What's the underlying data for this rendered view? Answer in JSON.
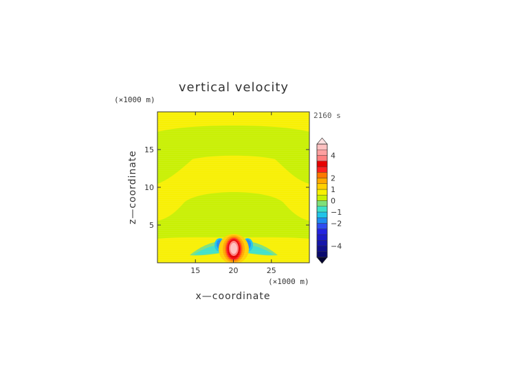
{
  "chart_data": {
    "type": "heatmap",
    "title": "vertical velocity",
    "xlabel": "x—coordinate",
    "ylabel": "z—coordinate",
    "x_unit": "(×1000 m)",
    "y_unit": "(×1000 m)",
    "time_label": "2160 s",
    "xlim": [
      10,
      30
    ],
    "ylim": [
      0,
      20
    ],
    "xticks": [
      15,
      20,
      25
    ],
    "yticks": [
      5,
      10,
      15
    ],
    "xtick_labels": [
      "15",
      "20",
      "25"
    ],
    "ytick_labels": [
      "5",
      "10",
      "15"
    ],
    "colorbar": {
      "levels": [
        -5,
        -4.5,
        -4,
        -3.5,
        -3,
        -2.5,
        -2,
        -1.5,
        -1,
        -0.5,
        0,
        0.5,
        1,
        1.5,
        2,
        2.5,
        3,
        3.5,
        4,
        4.5,
        5
      ],
      "colors": [
        "#0a0a6e",
        "#10108c",
        "#1515aa",
        "#1c1cc8",
        "#2424e0",
        "#2f4cf0",
        "#1f8cf0",
        "#20c4e8",
        "#3ee0c8",
        "#7ee07a",
        "#c8f000",
        "#f8f000",
        "#ffd000",
        "#ffa800",
        "#ff7800",
        "#ff2020",
        "#e60000",
        "#ff8080",
        "#ffa0a0",
        "#ffc0c0"
      ],
      "tick_values": [
        4,
        2,
        1,
        0,
        -1,
        -2,
        -4
      ],
      "tick_labels": [
        "4",
        "2",
        "1",
        "0",
        "−1",
        "−2",
        "−4"
      ]
    },
    "features": [
      {
        "type": "updraft_core",
        "x": 20.0,
        "z": 1.5,
        "max_value": 5
      },
      {
        "type": "downdraft_lobe",
        "x": 18.2,
        "z": 1.4,
        "min_value": -1.5
      },
      {
        "type": "downdraft_lobe",
        "x": 21.8,
        "z": 1.4,
        "min_value": -1.5
      }
    ]
  }
}
